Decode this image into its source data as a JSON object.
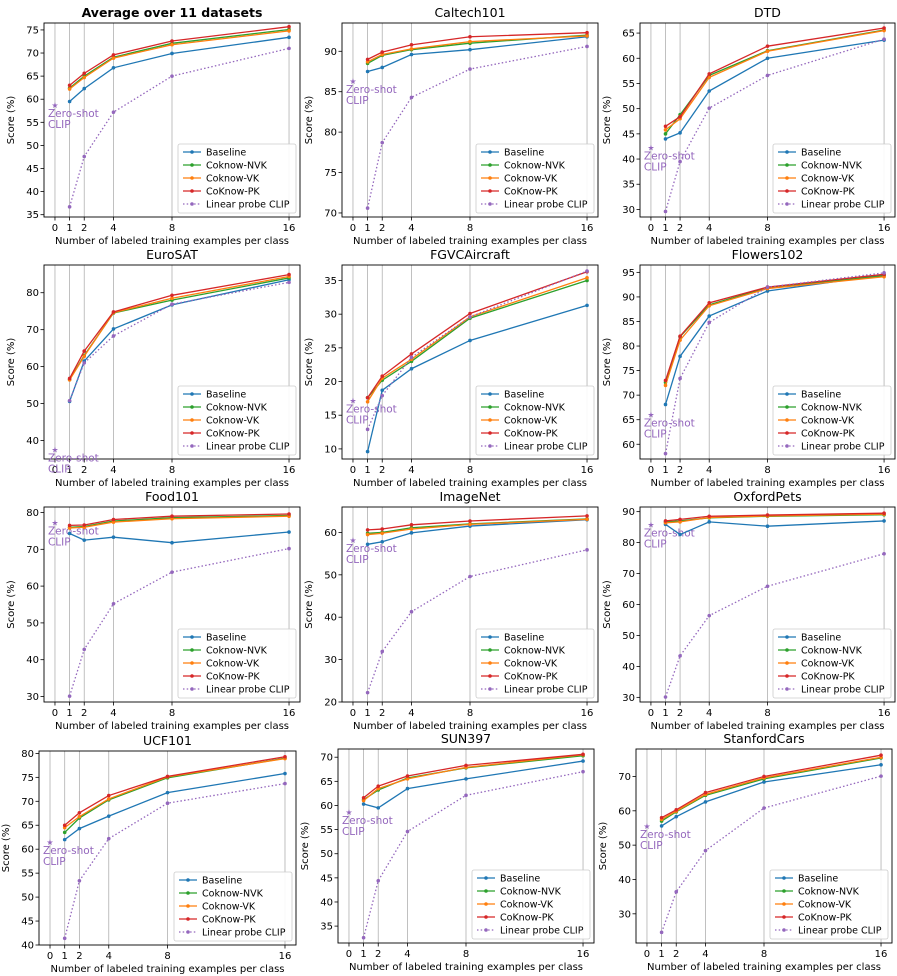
{
  "figure": {
    "common": {
      "xlabel": "Number of labeled training examples per class",
      "ylabel": "Score (%)",
      "x_ticks": [
        0,
        1,
        2,
        4,
        8,
        16
      ],
      "zero_shot_label_line1": "Zero-shot",
      "zero_shot_label_line2": "CLIP",
      "legend": [
        "Baseline",
        "Coknow-NVK",
        "Coknow-VK",
        "CoKnow-PK",
        "Linear probe CLIP"
      ],
      "colors": {
        "Baseline": "#1f77b4",
        "Coknow-NVK": "#2ca02c",
        "Coknow-VK": "#ff7f0e",
        "CoKnow-PK": "#d62728",
        "Linear probe CLIP": "#9467bd"
      }
    }
  },
  "chart_data": [
    {
      "type": "line",
      "title": "Average over 11 datasets",
      "title_bold": true,
      "ylim": [
        34.5,
        76.5
      ],
      "yticks": [
        35,
        40,
        45,
        50,
        55,
        60,
        65,
        70,
        75
      ],
      "zero_shot": 58.7,
      "zero_shot_label_pos": "below",
      "x": [
        1,
        2,
        4,
        8,
        16
      ],
      "series": [
        {
          "name": "Baseline",
          "values": [
            59.5,
            62.3,
            66.8,
            69.9,
            73.4
          ]
        },
        {
          "name": "Coknow-NVK",
          "values": [
            62.4,
            65.0,
            69.1,
            72.1,
            75.1
          ]
        },
        {
          "name": "Coknow-VK",
          "values": [
            62.2,
            64.7,
            68.9,
            71.8,
            74.8
          ]
        },
        {
          "name": "CoKnow-PK",
          "values": [
            63.0,
            65.6,
            69.6,
            72.6,
            75.7
          ]
        },
        {
          "name": "Linear probe CLIP",
          "values": [
            36.7,
            47.6,
            57.2,
            65.0,
            71.0
          ]
        }
      ]
    },
    {
      "type": "line",
      "title": "Caltech101",
      "title_bold": false,
      "ylim": [
        69.5,
        93.5
      ],
      "yticks": [
        70,
        75,
        80,
        85,
        90
      ],
      "zero_shot": 86.3,
      "zero_shot_label_pos": "below",
      "x": [
        1,
        2,
        4,
        8,
        16
      ],
      "series": [
        {
          "name": "Baseline",
          "values": [
            87.5,
            88.0,
            89.6,
            90.2,
            91.8
          ]
        },
        {
          "name": "Coknow-NVK",
          "values": [
            88.5,
            89.5,
            90.2,
            91.0,
            92.0
          ]
        },
        {
          "name": "Coknow-VK",
          "values": [
            88.7,
            89.6,
            90.3,
            91.2,
            91.9
          ]
        },
        {
          "name": "CoKnow-PK",
          "values": [
            89.0,
            89.9,
            90.8,
            91.8,
            92.3
          ]
        },
        {
          "name": "Linear probe CLIP",
          "values": [
            70.6,
            78.7,
            84.3,
            87.8,
            90.6
          ]
        }
      ]
    },
    {
      "type": "line",
      "title": "DTD",
      "title_bold": false,
      "ylim": [
        28.5,
        67.0
      ],
      "yticks": [
        30,
        35,
        40,
        45,
        50,
        55,
        60,
        65
      ],
      "zero_shot": 42.3,
      "zero_shot_label_pos": "below",
      "x": [
        1,
        2,
        4,
        8,
        16
      ],
      "series": [
        {
          "name": "Baseline",
          "values": [
            44.0,
            45.2,
            53.5,
            60.0,
            63.6
          ]
        },
        {
          "name": "Coknow-NVK",
          "values": [
            45.0,
            48.8,
            56.6,
            61.5,
            65.6
          ]
        },
        {
          "name": "Coknow-VK",
          "values": [
            45.8,
            48.0,
            56.2,
            61.4,
            65.5
          ]
        },
        {
          "name": "CoKnow-PK",
          "values": [
            46.5,
            48.4,
            56.9,
            62.4,
            66.0
          ]
        },
        {
          "name": "Linear probe CLIP",
          "values": [
            29.6,
            39.5,
            50.1,
            56.6,
            63.8
          ]
        }
      ]
    },
    {
      "type": "line",
      "title": "EuroSAT",
      "title_bold": false,
      "ylim": [
        35.0,
        87.5
      ],
      "yticks": [
        40,
        50,
        60,
        70,
        80
      ],
      "zero_shot": 37.6,
      "zero_shot_label_pos": "below",
      "x": [
        1,
        2,
        4,
        8,
        16
      ],
      "series": [
        {
          "name": "Baseline",
          "values": [
            50.6,
            61.5,
            70.2,
            76.7,
            83.5
          ]
        },
        {
          "name": "Coknow-NVK",
          "values": [
            56.5,
            63.0,
            74.5,
            78.0,
            84.0
          ]
        },
        {
          "name": "Coknow-VK",
          "values": [
            56.4,
            62.8,
            74.6,
            78.5,
            84.4
          ]
        },
        {
          "name": "CoKnow-PK",
          "values": [
            56.8,
            64.2,
            74.8,
            79.3,
            84.9
          ]
        },
        {
          "name": "Linear probe CLIP",
          "values": [
            50.8,
            61.0,
            68.3,
            76.9,
            82.8
          ]
        }
      ]
    },
    {
      "type": "line",
      "title": "FGVCAircraft",
      "title_bold": false,
      "ylim": [
        8.5,
        37.3
      ],
      "yticks": [
        10,
        15,
        20,
        25,
        30,
        35
      ],
      "zero_shot": 17.2,
      "zero_shot_label_pos": "below",
      "x": [
        1,
        2,
        4,
        8,
        16
      ],
      "series": [
        {
          "name": "Baseline",
          "values": [
            9.6,
            18.7,
            21.9,
            26.1,
            31.3
          ]
        },
        {
          "name": "Coknow-NVK",
          "values": [
            17.6,
            20.2,
            23.0,
            29.4,
            35.0
          ]
        },
        {
          "name": "Coknow-VK",
          "values": [
            17.0,
            20.5,
            23.3,
            29.6,
            35.4
          ]
        },
        {
          "name": "CoKnow-PK",
          "values": [
            17.6,
            20.8,
            24.1,
            30.1,
            36.3
          ]
        },
        {
          "name": "Linear probe CLIP",
          "values": [
            12.9,
            17.9,
            23.6,
            29.6,
            36.4
          ]
        }
      ]
    },
    {
      "type": "line",
      "title": "Flowers102",
      "title_bold": false,
      "ylim": [
        57.0,
        96.5
      ],
      "yticks": [
        60,
        65,
        70,
        75,
        80,
        85,
        90,
        95
      ],
      "zero_shot": 66.1,
      "zero_shot_label_pos": "below",
      "x": [
        1,
        2,
        4,
        8,
        16
      ],
      "series": [
        {
          "name": "Baseline",
          "values": [
            68.1,
            77.9,
            86.1,
            91.2,
            94.5
          ]
        },
        {
          "name": "Coknow-NVK",
          "values": [
            72.6,
            81.9,
            88.4,
            91.9,
            94.3
          ]
        },
        {
          "name": "Coknow-VK",
          "values": [
            72.0,
            81.2,
            88.2,
            91.7,
            94.1
          ]
        },
        {
          "name": "CoKnow-PK",
          "values": [
            73.0,
            82.0,
            88.8,
            92.0,
            94.6
          ]
        },
        {
          "name": "Linear probe CLIP",
          "values": [
            58.1,
            73.4,
            84.8,
            92.0,
            94.9
          ]
        }
      ]
    },
    {
      "type": "line",
      "title": "Food101",
      "title_bold": false,
      "ylim": [
        28.5,
        81.5
      ],
      "yticks": [
        30,
        40,
        50,
        60,
        70,
        80
      ],
      "zero_shot": 77.3,
      "zero_shot_label_pos": "below",
      "x": [
        1,
        2,
        4,
        8,
        16
      ],
      "series": [
        {
          "name": "Baseline",
          "values": [
            74.3,
            72.5,
            73.3,
            71.8,
            74.7
          ]
        },
        {
          "name": "Coknow-NVK",
          "values": [
            76.0,
            76.2,
            77.7,
            78.6,
            79.2
          ]
        },
        {
          "name": "Coknow-VK",
          "values": [
            75.8,
            76.0,
            77.4,
            78.3,
            79.0
          ]
        },
        {
          "name": "CoKnow-PK",
          "values": [
            76.5,
            76.6,
            78.1,
            79.0,
            79.6
          ]
        },
        {
          "name": "Linear probe CLIP",
          "values": [
            30.1,
            42.8,
            55.2,
            63.8,
            70.2
          ]
        }
      ]
    },
    {
      "type": "line",
      "title": "ImageNet",
      "title_bold": false,
      "ylim": [
        20.0,
        66.0
      ],
      "yticks": [
        20,
        30,
        40,
        50,
        60
      ],
      "zero_shot": 58.2,
      "zero_shot_label_pos": "below",
      "x": [
        1,
        2,
        4,
        8,
        16
      ],
      "series": [
        {
          "name": "Baseline",
          "values": [
            57.2,
            57.8,
            59.9,
            61.5,
            63.0
          ]
        },
        {
          "name": "Coknow-NVK",
          "values": [
            59.8,
            60.0,
            61.1,
            62.0,
            63.2
          ]
        },
        {
          "name": "Coknow-VK",
          "values": [
            59.5,
            59.8,
            60.8,
            61.9,
            63.1
          ]
        },
        {
          "name": "CoKnow-PK",
          "values": [
            60.6,
            60.8,
            61.8,
            62.7,
            63.9
          ]
        },
        {
          "name": "Linear probe CLIP",
          "values": [
            22.2,
            31.9,
            41.3,
            49.6,
            55.9
          ]
        }
      ]
    },
    {
      "type": "line",
      "title": "OxfordPets",
      "title_bold": false,
      "ylim": [
        28.5,
        91.5
      ],
      "yticks": [
        30,
        40,
        50,
        60,
        70,
        80,
        90
      ],
      "zero_shot": 85.8,
      "zero_shot_label_pos": "below",
      "x": [
        1,
        2,
        4,
        8,
        16
      ],
      "series": [
        {
          "name": "Baseline",
          "values": [
            85.9,
            82.6,
            86.7,
            85.3,
            87.0
          ]
        },
        {
          "name": "Coknow-NVK",
          "values": [
            86.7,
            87.0,
            88.0,
            88.5,
            89.0
          ]
        },
        {
          "name": "Coknow-VK",
          "values": [
            86.4,
            86.7,
            88.1,
            88.6,
            89.2
          ]
        },
        {
          "name": "CoKnow-PK",
          "values": [
            87.0,
            87.5,
            88.5,
            88.9,
            89.5
          ]
        },
        {
          "name": "Linear probe CLIP",
          "values": [
            30.1,
            43.4,
            56.4,
            65.9,
            76.4
          ]
        }
      ]
    },
    {
      "type": "line",
      "title": "UCF101",
      "title_bold": false,
      "ylim": [
        40.0,
        80.5
      ],
      "yticks": [
        40,
        45,
        50,
        55,
        60,
        65,
        70,
        75,
        80
      ],
      "zero_shot": 61.5,
      "zero_shot_label_pos": "below",
      "x": [
        1,
        2,
        4,
        8,
        16
      ],
      "series": [
        {
          "name": "Baseline",
          "values": [
            62.0,
            64.3,
            66.9,
            71.8,
            75.8
          ]
        },
        {
          "name": "Coknow-NVK",
          "values": [
            63.5,
            66.5,
            70.3,
            74.9,
            79.0
          ]
        },
        {
          "name": "Coknow-VK",
          "values": [
            64.5,
            66.8,
            70.5,
            75.1,
            78.9
          ]
        },
        {
          "name": "CoKnow-PK",
          "values": [
            65.0,
            67.6,
            71.2,
            75.2,
            79.3
          ]
        },
        {
          "name": "Linear probe CLIP",
          "values": [
            41.4,
            53.4,
            62.2,
            69.6,
            73.7
          ]
        }
      ]
    },
    {
      "type": "line",
      "title": "SUN397",
      "title_bold": false,
      "ylim": [
        31.5,
        71.7
      ],
      "yticks": [
        35,
        40,
        45,
        50,
        55,
        60,
        65,
        70
      ],
      "zero_shot": 58.6,
      "zero_shot_label_pos": "below",
      "x": [
        1,
        2,
        4,
        8,
        16
      ],
      "series": [
        {
          "name": "Baseline",
          "values": [
            60.3,
            59.5,
            63.5,
            65.5,
            69.2
          ]
        },
        {
          "name": "Coknow-NVK",
          "values": [
            61.2,
            63.2,
            65.7,
            67.8,
            70.3
          ]
        },
        {
          "name": "Coknow-VK",
          "values": [
            61.0,
            63.5,
            65.5,
            67.9,
            70.5
          ]
        },
        {
          "name": "CoKnow-PK",
          "values": [
            61.6,
            64.0,
            66.1,
            68.3,
            70.6
          ]
        },
        {
          "name": "Linear probe CLIP",
          "values": [
            32.6,
            44.4,
            54.6,
            62.1,
            67.0
          ]
        }
      ]
    },
    {
      "type": "line",
      "title": "StanfordCars",
      "title_bold": false,
      "ylim": [
        21.5,
        78.0
      ],
      "yticks": [
        30,
        40,
        50,
        60,
        70
      ],
      "zero_shot": 55.6,
      "zero_shot_label_pos": "below",
      "x": [
        1,
        2,
        4,
        8,
        16
      ],
      "series": [
        {
          "name": "Baseline",
          "values": [
            55.6,
            58.3,
            62.6,
            68.4,
            73.4
          ]
        },
        {
          "name": "Coknow-NVK",
          "values": [
            57.0,
            59.7,
            64.5,
            69.3,
            75.4
          ]
        },
        {
          "name": "Coknow-VK",
          "values": [
            57.5,
            59.9,
            64.8,
            69.6,
            75.6
          ]
        },
        {
          "name": "CoKnow-PK",
          "values": [
            58.0,
            60.3,
            65.3,
            70.0,
            76.2
          ]
        },
        {
          "name": "Linear probe CLIP",
          "values": [
            24.6,
            36.4,
            48.4,
            60.8,
            70.1
          ]
        }
      ]
    }
  ]
}
